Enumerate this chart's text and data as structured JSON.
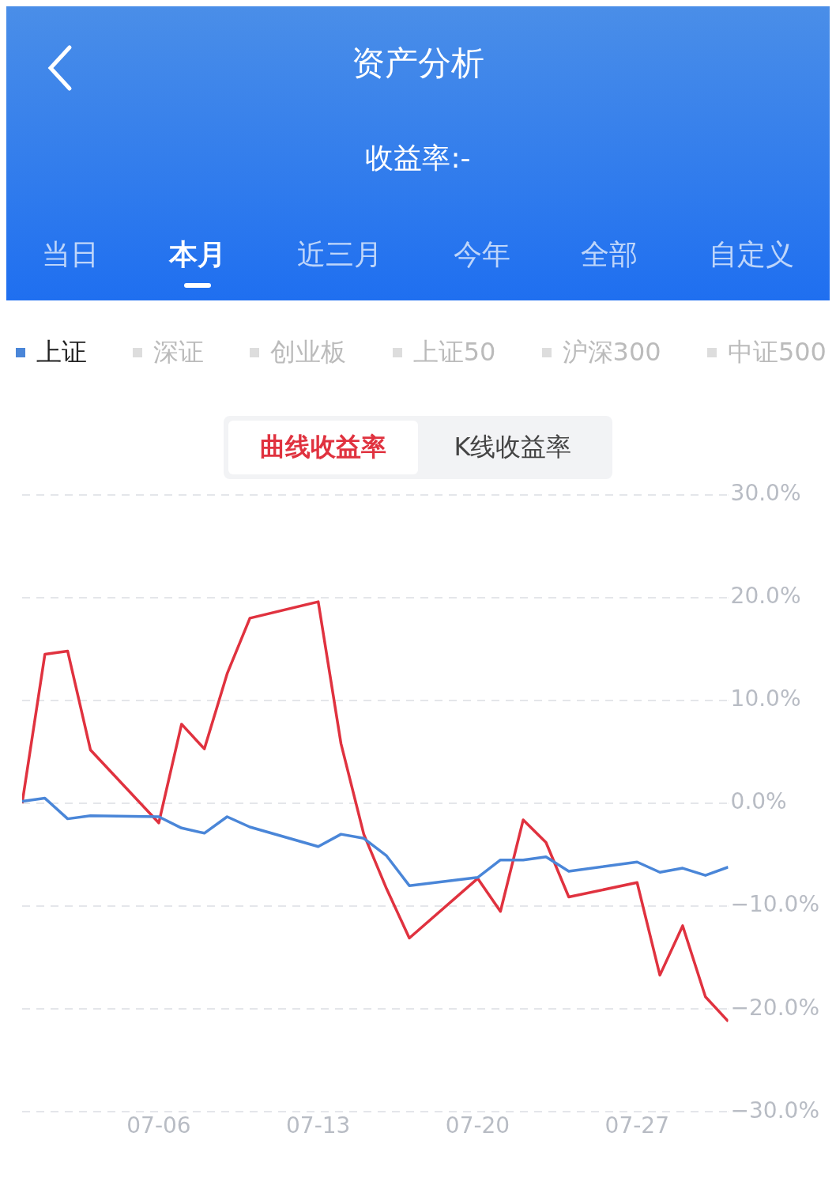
{
  "chart_data": {
    "type": "line",
    "title": "资产分析",
    "subtitle": "收益率:-",
    "annotations": [
      "当日",
      "本月",
      "近三月",
      "今年",
      "全部",
      "自定义",
      "深证",
      "创业板",
      "上证50",
      "沪深300",
      "中证500",
      "曲线收益率",
      "K线收益率"
    ],
    "series": [
      {
        "color": "#e0323f",
        "x": [
          "--06-30",
          "--07-01",
          "--07-02",
          "--07-03",
          "--07-06",
          "--07-07",
          "--07-08",
          "--07-09",
          "--07-10",
          "--07-13",
          "--07-14",
          "--07-15",
          "--07-16",
          "--07-17",
          "--07-20",
          "--07-21",
          "--07-22",
          "--07-23",
          "--07-24",
          "--07-27",
          "--07-28",
          "--07-29",
          "--07-30",
          "--07-31"
        ],
        "values": [
          0,
          14.5,
          14.8,
          5.2,
          -1.9,
          7.7,
          5.3,
          12.6,
          18.0,
          19.6,
          5.8,
          -3.0,
          -8.3,
          -13.1,
          -7.3,
          -10.5,
          -1.6,
          -3.8,
          -9.1,
          -7.7,
          -16.7,
          -11.9,
          -18.8,
          -21.2
        ]
      },
      {
        "name": "上证",
        "color": "#4a86d8",
        "x": [
          "--06-30",
          "--07-01",
          "--07-02",
          "--07-03",
          "--07-06",
          "--07-07",
          "--07-08",
          "--07-09",
          "--07-10",
          "--07-13",
          "--07-14",
          "--07-15",
          "--07-16",
          "--07-17",
          "--07-20",
          "--07-21",
          "--07-22",
          "--07-23",
          "--07-24",
          "--07-27",
          "--07-28",
          "--07-29",
          "--07-30",
          "--07-31"
        ],
        "values": [
          0.2,
          0.5,
          -1.5,
          -1.2,
          -1.3,
          -2.4,
          -2.9,
          -1.3,
          -2.3,
          -4.2,
          -3.0,
          -3.4,
          -5.1,
          -8.0,
          -7.2,
          -5.5,
          -5.5,
          -5.2,
          -6.6,
          -5.7,
          -6.7,
          -6.3,
          -7.0,
          -6.2
        ]
      }
    ],
    "xlim": [
      "--06-30",
      "--07-31"
    ],
    "xticks": [
      {
        "value": "--07-06",
        "label": "07-06"
      },
      {
        "value": "--07-13",
        "label": "07-13"
      },
      {
        "value": "--07-20",
        "label": "07-20"
      },
      {
        "value": "--07-27",
        "label": "07-27"
      }
    ],
    "ylim": [
      -30,
      30
    ],
    "yticks": [
      {
        "value": 30,
        "label": "30.0%"
      },
      {
        "value": 20,
        "label": "20.0%"
      },
      {
        "value": 10,
        "label": "10.0%"
      },
      {
        "value": 0,
        "label": "0.0%"
      },
      {
        "value": -10,
        "label": "−10.0%"
      },
      {
        "value": -20,
        "label": "−20.0%"
      },
      {
        "value": -30,
        "label": "−30.0%"
      }
    ],
    "grid": "y",
    "legend": "top left",
    "marker": "none",
    "line_style": "solid"
  }
}
